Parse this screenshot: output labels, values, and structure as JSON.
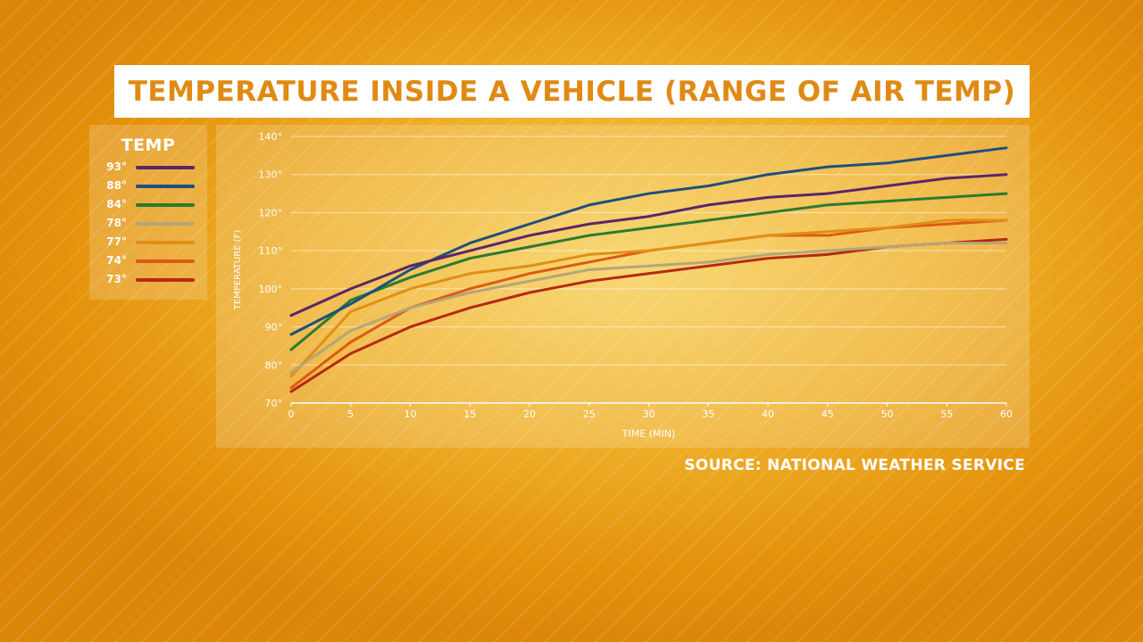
{
  "title": "TEMPERATURE INSIDE A VEHICLE (RANGE OF AIR TEMP)",
  "legend": {
    "title": "TEMP",
    "items": [
      {
        "label": "93°",
        "color": "#5a2668"
      },
      {
        "label": "88°",
        "color": "#1f4f7e"
      },
      {
        "label": "84°",
        "color": "#2c7a30"
      },
      {
        "label": "78°",
        "color": "#b3a67a"
      },
      {
        "label": "77°",
        "color": "#e08f16"
      },
      {
        "label": "74°",
        "color": "#de5a14"
      },
      {
        "label": "73°",
        "color": "#b62a12"
      }
    ]
  },
  "source": "SOURCE: NATIONAL WEATHER SERVICE",
  "chart_data": {
    "type": "line",
    "xlabel": "TIME (MIN)",
    "ylabel": "TEMPERATURE (F)",
    "x": [
      0,
      5,
      10,
      15,
      20,
      25,
      30,
      35,
      40,
      45,
      50,
      55,
      60
    ],
    "xlim": [
      0,
      60
    ],
    "ylim": [
      70,
      140
    ],
    "yticks": [
      70,
      80,
      90,
      100,
      110,
      120,
      130,
      140
    ],
    "ytick_labels": [
      "70°",
      "80°",
      "90°",
      "100°",
      "110°",
      "120°",
      "130°",
      "140°"
    ],
    "xticks": [
      0,
      5,
      10,
      15,
      20,
      25,
      30,
      35,
      40,
      45,
      50,
      55,
      60
    ],
    "grid": true,
    "series": [
      {
        "name": "93°",
        "color": "#5a2668",
        "values": [
          93,
          100,
          106,
          110,
          114,
          117,
          119,
          122,
          124,
          125,
          127,
          129,
          130
        ]
      },
      {
        "name": "88°",
        "color": "#1f4f7e",
        "values": [
          88,
          96,
          105,
          112,
          117,
          122,
          125,
          127,
          130,
          132,
          133,
          135,
          137
        ]
      },
      {
        "name": "84°",
        "color": "#2c7a30",
        "values": [
          84,
          97,
          103,
          108,
          111,
          114,
          116,
          118,
          120,
          122,
          123,
          124,
          125
        ]
      },
      {
        "name": "78°",
        "color": "#b3a67a",
        "values": [
          78,
          89,
          95,
          99,
          102,
          105,
          106,
          107,
          109,
          110,
          111,
          112,
          112
        ]
      },
      {
        "name": "77°",
        "color": "#e08f16",
        "values": [
          77,
          94,
          100,
          104,
          106,
          109,
          110,
          112,
          114,
          115,
          116,
          118,
          118
        ]
      },
      {
        "name": "74°",
        "color": "#de5a14",
        "values": [
          74,
          86,
          95,
          100,
          104,
          107,
          110,
          112,
          114,
          114,
          116,
          117,
          118
        ]
      },
      {
        "name": "73°",
        "color": "#b62a12",
        "values": [
          73,
          83,
          90,
          95,
          99,
          102,
          104,
          106,
          108,
          109,
          111,
          112,
          113
        ]
      }
    ]
  }
}
